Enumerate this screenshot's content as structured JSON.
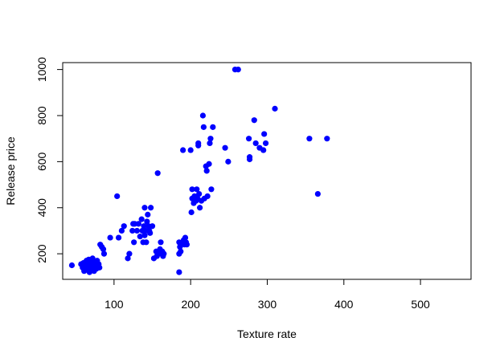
{
  "chart_data": {
    "type": "scatter",
    "title": "",
    "xlabel": "Texture rate",
    "ylabel": "Release price",
    "xlim": [
      33,
      566
    ],
    "ylim": [
      89,
      1030
    ],
    "x_ticks": [
      100,
      200,
      300,
      400,
      500
    ],
    "y_ticks": [
      200,
      400,
      600,
      800,
      1000
    ],
    "x_tick_labels": [
      "100",
      "200",
      "300",
      "400",
      "500"
    ],
    "y_tick_labels": [
      "200",
      "400",
      "600",
      "800",
      "1000"
    ],
    "grid": false,
    "legend": "none",
    "point_color": "#0000ff",
    "series": [
      {
        "points": [
          [
            45,
            150
          ],
          [
            57,
            155
          ],
          [
            59,
            140
          ],
          [
            60,
            160
          ],
          [
            61,
            125
          ],
          [
            62,
            135
          ],
          [
            63,
            150
          ],
          [
            64,
            170
          ],
          [
            65,
            130
          ],
          [
            65,
            160
          ],
          [
            66,
            145
          ],
          [
            67,
            175
          ],
          [
            68,
            120
          ],
          [
            68,
            155
          ],
          [
            69,
            140
          ],
          [
            70,
            165
          ],
          [
            70,
            130
          ],
          [
            71,
            150
          ],
          [
            72,
            180
          ],
          [
            73,
            145
          ],
          [
            74,
            125
          ],
          [
            75,
            160
          ],
          [
            76,
            150
          ],
          [
            77,
            135
          ],
          [
            78,
            170
          ],
          [
            79,
            145
          ],
          [
            80,
            155
          ],
          [
            81,
            140
          ],
          [
            82,
            240
          ],
          [
            84,
            230
          ],
          [
            86,
            220
          ],
          [
            87,
            200
          ],
          [
            95,
            270
          ],
          [
            104,
            450
          ],
          [
            106,
            270
          ],
          [
            110,
            300
          ],
          [
            113,
            320
          ],
          [
            118,
            180
          ],
          [
            120,
            200
          ],
          [
            124,
            300
          ],
          [
            125,
            330
          ],
          [
            126,
            250
          ],
          [
            127,
            330
          ],
          [
            130,
            300
          ],
          [
            132,
            330
          ],
          [
            134,
            275
          ],
          [
            136,
            350
          ],
          [
            137,
            300
          ],
          [
            138,
            250
          ],
          [
            139,
            320
          ],
          [
            140,
            400
          ],
          [
            140,
            280
          ],
          [
            141,
            300
          ],
          [
            142,
            250
          ],
          [
            143,
            340
          ],
          [
            144,
            370
          ],
          [
            145,
            320
          ],
          [
            146,
            300
          ],
          [
            147,
            290
          ],
          [
            148,
            400
          ],
          [
            150,
            320
          ],
          [
            152,
            180
          ],
          [
            155,
            210
          ],
          [
            156,
            190
          ],
          [
            157,
            550
          ],
          [
            158,
            200
          ],
          [
            160,
            220
          ],
          [
            161,
            250
          ],
          [
            162,
            200
          ],
          [
            163,
            210
          ],
          [
            164,
            190
          ],
          [
            165,
            200
          ],
          [
            185,
            120
          ],
          [
            185,
            200
          ],
          [
            185,
            250
          ],
          [
            186,
            230
          ],
          [
            187,
            210
          ],
          [
            188,
            240
          ],
          [
            190,
            650
          ],
          [
            190,
            250
          ],
          [
            191,
            260
          ],
          [
            192,
            240
          ],
          [
            193,
            270
          ],
          [
            194,
            250
          ],
          [
            195,
            240
          ],
          [
            200,
            650
          ],
          [
            201,
            380
          ],
          [
            202,
            480
          ],
          [
            202,
            440
          ],
          [
            204,
            420
          ],
          [
            205,
            450
          ],
          [
            207,
            430
          ],
          [
            208,
            480
          ],
          [
            209,
            440
          ],
          [
            210,
            670
          ],
          [
            210,
            680
          ],
          [
            211,
            460
          ],
          [
            212,
            400
          ],
          [
            214,
            430
          ],
          [
            216,
            800
          ],
          [
            217,
            750
          ],
          [
            218,
            440
          ],
          [
            220,
            580
          ],
          [
            221,
            560
          ],
          [
            222,
            450
          ],
          [
            224,
            590
          ],
          [
            225,
            680
          ],
          [
            226,
            700
          ],
          [
            227,
            480
          ],
          [
            229,
            750
          ],
          [
            245,
            660
          ],
          [
            249,
            600
          ],
          [
            258,
            1000
          ],
          [
            262,
            1000
          ],
          [
            276,
            700
          ],
          [
            277,
            620
          ],
          [
            277,
            610
          ],
          [
            283,
            780
          ],
          [
            285,
            680
          ],
          [
            290,
            660
          ],
          [
            295,
            650
          ],
          [
            296,
            720
          ],
          [
            298,
            680
          ],
          [
            310,
            830
          ],
          [
            355,
            700
          ],
          [
            366,
            460
          ],
          [
            378,
            700
          ]
        ]
      }
    ]
  }
}
